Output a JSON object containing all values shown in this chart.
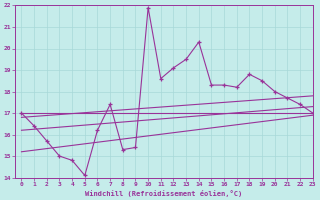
{
  "x_values": [
    0,
    1,
    2,
    3,
    4,
    5,
    6,
    7,
    8,
    9,
    10,
    11,
    12,
    13,
    14,
    15,
    16,
    17,
    18,
    19,
    20,
    21,
    22,
    23
  ],
  "main_line": [
    17.0,
    16.4,
    15.7,
    15.0,
    14.8,
    14.1,
    16.2,
    17.4,
    15.3,
    15.4,
    21.9,
    18.6,
    19.1,
    19.5,
    20.3,
    18.3,
    18.3,
    18.2,
    18.8,
    18.5,
    18.0,
    17.7,
    17.4,
    17.0
  ],
  "trend_lines": [
    {
      "x": [
        0,
        23
      ],
      "y": [
        17.0,
        17.0
      ]
    },
    {
      "x": [
        0,
        23
      ],
      "y": [
        16.8,
        17.8
      ]
    },
    {
      "x": [
        0,
        23
      ],
      "y": [
        16.2,
        17.3
      ]
    },
    {
      "x": [
        0,
        23
      ],
      "y": [
        15.2,
        16.9
      ]
    }
  ],
  "bg_color": "#c5ecea",
  "line_color": "#993399",
  "grid_color": "#a8d8d8",
  "ylim": [
    14,
    22
  ],
  "xlim": [
    -0.5,
    23
  ],
  "xlabel": "Windchill (Refroidissement éolien,°C)",
  "yticks": [
    14,
    15,
    16,
    17,
    18,
    19,
    20,
    21,
    22
  ],
  "xticks": [
    0,
    1,
    2,
    3,
    4,
    5,
    6,
    7,
    8,
    9,
    10,
    11,
    12,
    13,
    14,
    15,
    16,
    17,
    18,
    19,
    20,
    21,
    22,
    23
  ],
  "figsize": [
    3.2,
    2.0
  ],
  "dpi": 100
}
